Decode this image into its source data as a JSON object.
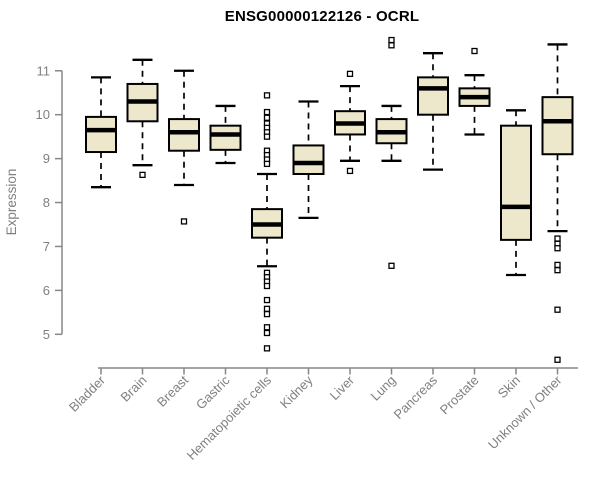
{
  "chart_data": {
    "type": "boxplot",
    "title": "ENSG00000122126 - OCRL",
    "ylabel": "Expression",
    "ylim": [
      4.2,
      11.8
    ],
    "yticks": [
      5,
      6,
      7,
      8,
      9,
      10,
      11
    ],
    "grid": false,
    "x_label_rotation": -45,
    "categories": [
      "Bladder",
      "Brain",
      "Breast",
      "Gastric",
      "Hematopoietic cells",
      "Kidney",
      "Liver",
      "Lung",
      "Pancreas",
      "Prostate",
      "Skin",
      "Unknown / Other"
    ],
    "boxes": [
      {
        "category": "Bladder",
        "whisker_low": 8.35,
        "q1": 9.15,
        "median": 9.65,
        "q3": 9.95,
        "whisker_high": 10.85,
        "outliers": []
      },
      {
        "category": "Brain",
        "whisker_low": 8.85,
        "q1": 9.85,
        "median": 10.3,
        "q3": 10.7,
        "whisker_high": 11.25,
        "outliers": [
          8.63
        ]
      },
      {
        "category": "Breast",
        "whisker_low": 8.4,
        "q1": 9.18,
        "median": 9.6,
        "q3": 9.9,
        "whisker_high": 11.0,
        "outliers": [
          7.57
        ]
      },
      {
        "category": "Gastric",
        "whisker_low": 8.9,
        "q1": 9.2,
        "median": 9.55,
        "q3": 9.75,
        "whisker_high": 10.2,
        "outliers": []
      },
      {
        "category": "Hematopoietic cells",
        "whisker_low": 6.55,
        "q1": 7.2,
        "median": 7.5,
        "q3": 7.85,
        "whisker_high": 8.65,
        "outliers": [
          10.44,
          10.06,
          9.93,
          9.8,
          9.7,
          9.6,
          9.5,
          9.18,
          9.08,
          8.98,
          8.88,
          6.4,
          6.3,
          6.2,
          6.1,
          5.78,
          5.58,
          5.46,
          5.16,
          5.03,
          4.68
        ]
      },
      {
        "category": "Kidney",
        "whisker_low": 7.65,
        "q1": 8.65,
        "median": 8.9,
        "q3": 9.3,
        "whisker_high": 10.3,
        "outliers": []
      },
      {
        "category": "Liver",
        "whisker_low": 8.95,
        "q1": 9.55,
        "median": 9.8,
        "q3": 10.08,
        "whisker_high": 10.65,
        "outliers": [
          10.93,
          8.72
        ]
      },
      {
        "category": "Lung",
        "whisker_low": 8.95,
        "q1": 9.35,
        "median": 9.6,
        "q3": 9.9,
        "whisker_high": 10.2,
        "outliers": [
          11.7,
          11.58,
          6.56
        ]
      },
      {
        "category": "Pancreas",
        "whisker_low": 8.75,
        "q1": 10.0,
        "median": 10.6,
        "q3": 10.85,
        "whisker_high": 11.4,
        "outliers": []
      },
      {
        "category": "Prostate",
        "whisker_low": 9.55,
        "q1": 10.2,
        "median": 10.4,
        "q3": 10.6,
        "whisker_high": 10.9,
        "outliers": [
          11.45
        ]
      },
      {
        "category": "Skin",
        "whisker_low": 6.35,
        "q1": 7.15,
        "median": 7.9,
        "q3": 9.75,
        "whisker_high": 10.1,
        "outliers": []
      },
      {
        "category": "Unknown / Other",
        "whisker_low": 7.35,
        "q1": 9.1,
        "median": 9.85,
        "q3": 10.4,
        "whisker_high": 11.6,
        "outliers": [
          7.18,
          7.06,
          6.96,
          6.58,
          6.46,
          5.56,
          4.42
        ]
      }
    ],
    "colors": {
      "box_fill": "#ede7cb",
      "box_stroke": "#000000",
      "median": "#000000",
      "outlier_fill": "#ffffff",
      "axis_line": "#878787",
      "tick_text": "#808080",
      "title_text": "#000000"
    }
  }
}
